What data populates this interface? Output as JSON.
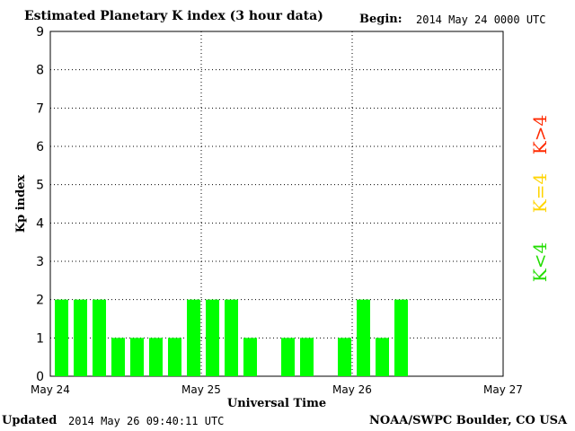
{
  "header": {
    "title": "Estimated Planetary K index (3 hour data)",
    "begin_label": "Begin:",
    "begin_value": "2014 May 24 0000 UTC"
  },
  "footer": {
    "updated_label": "Updated",
    "updated_value": "2014 May 26 09:40:11 UTC",
    "credit": "NOAA/SWPC Boulder, CO USA"
  },
  "legend": [
    {
      "label": "K>4",
      "color": "#ff2a00"
    },
    {
      "label": "K=4",
      "color": "#ffd400"
    },
    {
      "label": "K<4",
      "color": "#22dd00"
    }
  ],
  "chart_data": {
    "type": "bar",
    "title": "Estimated Planetary K index (3 hour data)",
    "xlabel": "Universal Time",
    "ylabel": "Kp index",
    "ylim": [
      0,
      9
    ],
    "yticks": [
      "0",
      "1",
      "2",
      "3",
      "4",
      "5",
      "6",
      "7",
      "8",
      "9"
    ],
    "xticks": [
      "May 24",
      "May 25",
      "May 26",
      "May 27"
    ],
    "x_period_hours": 3,
    "grid": true,
    "bar_color": "#00ff00",
    "values": [
      2,
      2,
      2,
      1,
      1,
      1,
      1,
      2,
      2,
      2,
      1,
      0,
      1,
      1,
      0,
      1,
      2,
      1,
      2
    ]
  }
}
